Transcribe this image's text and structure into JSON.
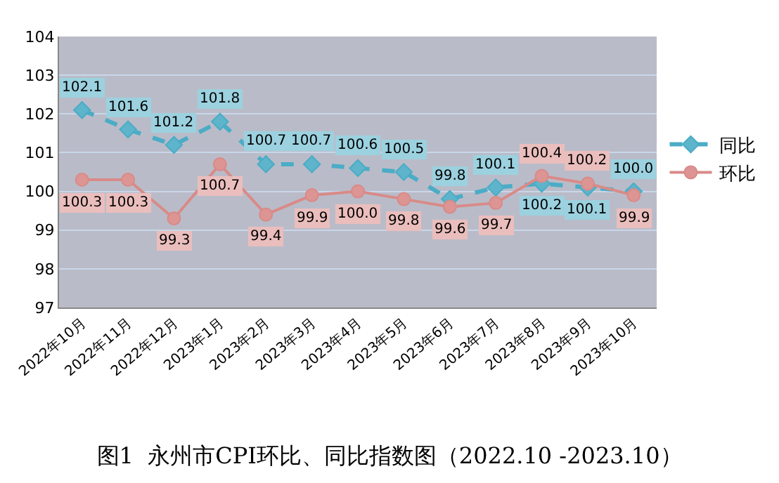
{
  "chart_data": {
    "type": "line",
    "title": "图1  永州市CPI环比、同比指数图（2022.10 -2023.10）",
    "categories": [
      "2022年10月",
      "2022年11月",
      "2022年12月",
      "2023年1月",
      "2023年2月",
      "2023年3月",
      "2023年4月",
      "2023年5月",
      "2023年6月",
      "2023年7月",
      "2023年8月",
      "2023年9月",
      "2023年10月"
    ],
    "series": [
      {
        "name": "同比",
        "color": "#4bacc6",
        "marker": "diamond",
        "line_style": "dashed",
        "values": [
          102.1,
          101.6,
          101.2,
          101.8,
          100.7,
          100.7,
          100.6,
          100.5,
          99.8,
          100.1,
          100.2,
          100.1,
          100.0
        ],
        "value_labels": [
          "102.1",
          "101.6",
          "101.2",
          "101.8",
          "100.7",
          "100.7",
          "100.6",
          "100.5",
          "99.8",
          "100.1",
          "100.2",
          "100.1",
          "100.0"
        ]
      },
      {
        "name": "环比",
        "color": "#d98a88",
        "marker": "circle",
        "line_style": "solid",
        "values": [
          100.3,
          100.3,
          99.3,
          100.7,
          99.4,
          99.9,
          100.0,
          99.8,
          99.6,
          99.7,
          100.4,
          100.2,
          99.9
        ],
        "value_labels": [
          "100.3",
          "100.3",
          "99.3",
          "100.7",
          "99.4",
          "99.9",
          "100.0",
          "99.8",
          "99.6",
          "99.7",
          "100.4",
          "100.2",
          "99.9"
        ]
      }
    ],
    "ylim": [
      97,
      104
    ],
    "yticks": [
      97,
      98,
      99,
      100,
      101,
      102,
      103,
      104
    ],
    "grid": "y",
    "legend": "right"
  }
}
